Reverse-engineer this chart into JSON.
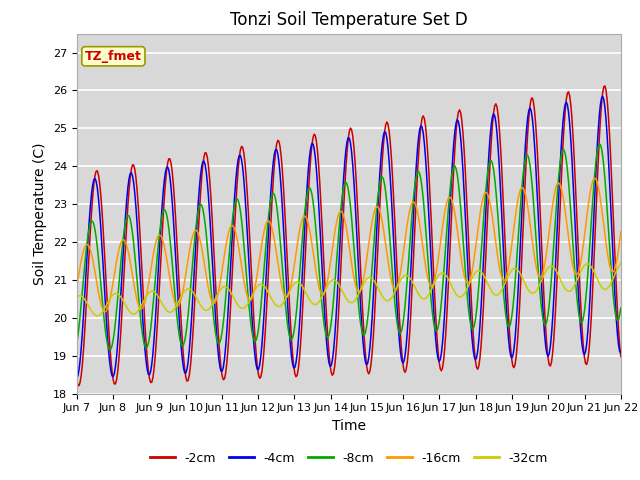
{
  "title": "Tonzi Soil Temperature Set D",
  "xlabel": "Time",
  "ylabel": "Soil Temperature (C)",
  "ylim": [
    18.0,
    27.5
  ],
  "yticks": [
    18.0,
    19.0,
    20.0,
    21.0,
    22.0,
    23.0,
    24.0,
    25.0,
    26.0,
    27.0
  ],
  "line_colors": {
    "-2cm": "#cc0000",
    "-4cm": "#0000ee",
    "-8cm": "#00aa00",
    "-16cm": "#ff9900",
    "-32cm": "#cccc00"
  },
  "legend_labels": [
    "-2cm",
    "-4cm",
    "-8cm",
    "-16cm",
    "-32cm"
  ],
  "xtick_labels": [
    "Jun 7",
    "Jun 8",
    "Jun 9",
    "Jun 10",
    "Jun 11",
    "Jun 12",
    "Jun 13",
    "Jun 14",
    "Jun 15",
    "Jun 16",
    "Jun 17",
    "Jun 18",
    "Jun 19",
    "Jun 20",
    "Jun 21",
    "Jun 22"
  ],
  "annotation_text": "TZ_fmet",
  "annotation_color": "#cc0000",
  "annotation_bg": "#ffffcc",
  "bg_color": "#d8d8d8",
  "grid_color": "#ffffff",
  "n_points": 480,
  "start_day": 0,
  "end_day": 15,
  "n_days": 15
}
